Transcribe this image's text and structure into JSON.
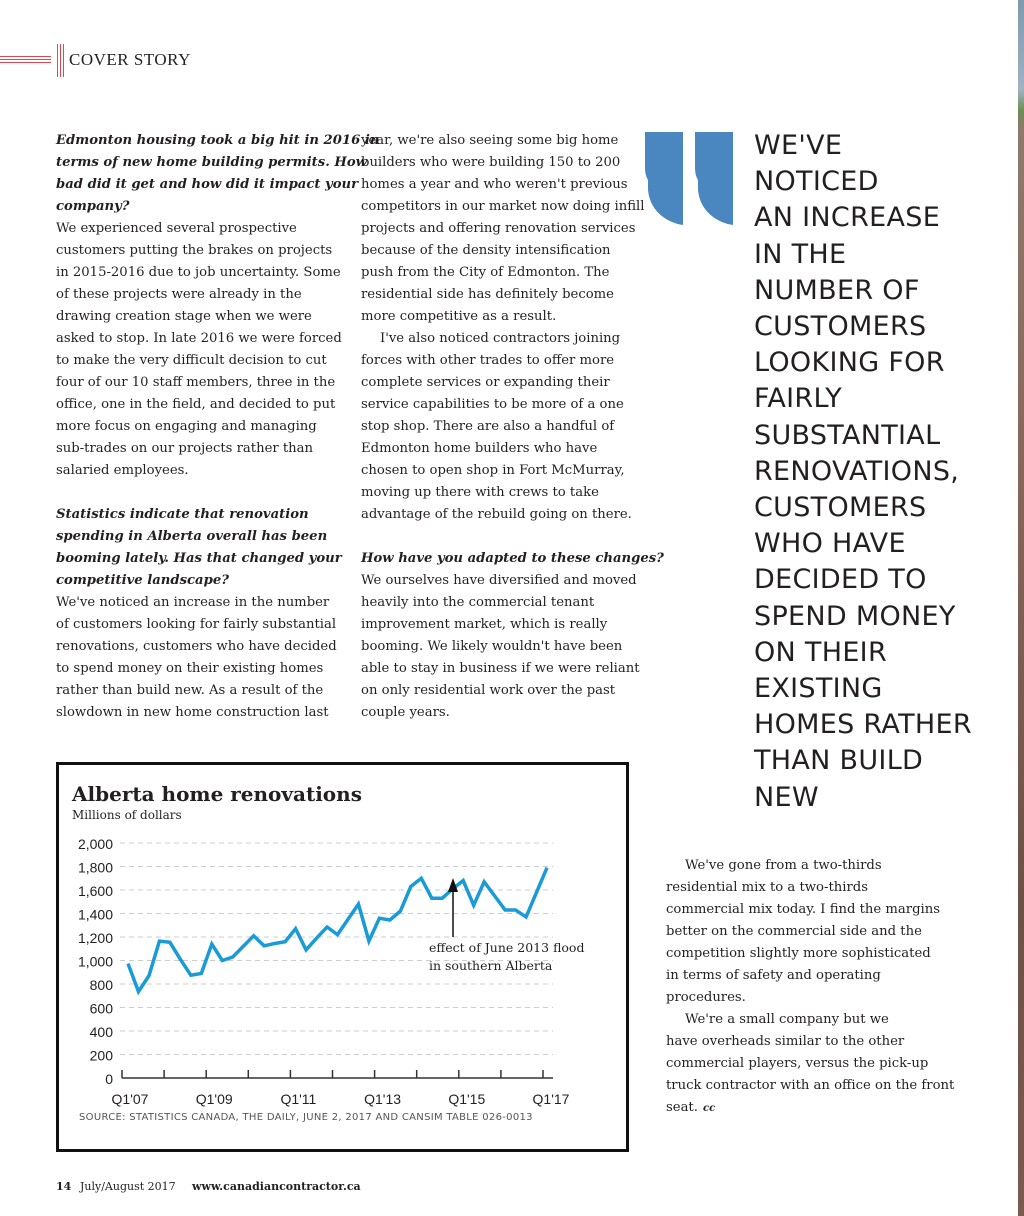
{
  "header": {
    "section": "COVER STORY"
  },
  "column1": [
    {
      "style": "q",
      "text": "Edmonton housing took a big hit in 2016 in"
    },
    {
      "style": "q",
      "text": "terms of new home building permits. How"
    },
    {
      "style": "q",
      "text": "bad did it get and how did it impact your"
    },
    {
      "style": "q",
      "text": "company?"
    },
    {
      "style": "",
      "text": "We experienced several prospective"
    },
    {
      "style": "",
      "text": "customers putting the brakes on projects"
    },
    {
      "style": "",
      "text": "in 2015-2016 due to job uncertainty. Some"
    },
    {
      "style": "",
      "text": "of these projects were already in the"
    },
    {
      "style": "",
      "text": "drawing creation stage when we were"
    },
    {
      "style": "",
      "text": "asked to stop. In late 2016 we were forced"
    },
    {
      "style": "",
      "text": "to make the very difficult decision to cut"
    },
    {
      "style": "",
      "text": "four of our 10 staff members, three in the"
    },
    {
      "style": "",
      "text": "office, one in the field, and decided to put"
    },
    {
      "style": "",
      "text": "more focus on engaging and managing"
    },
    {
      "style": "",
      "text": "sub-trades on our projects rather than"
    },
    {
      "style": "",
      "text": "salaried employees."
    },
    {
      "style": "gap",
      "text": ""
    },
    {
      "style": "q",
      "text": "Statistics indicate that renovation"
    },
    {
      "style": "q",
      "text": "spending in Alberta overall has been"
    },
    {
      "style": "q",
      "text": "booming lately. Has that changed your"
    },
    {
      "style": "q",
      "text": "competitive landscape?"
    },
    {
      "style": "",
      "text": "We've noticed an increase in the number"
    },
    {
      "style": "",
      "text": "of customers looking for fairly substantial"
    },
    {
      "style": "",
      "text": "renovations, customers who have decided"
    },
    {
      "style": "",
      "text": "to spend money on their existing homes"
    },
    {
      "style": "",
      "text": "rather than build new. As a result of the"
    },
    {
      "style": "",
      "text": "slowdown in new home construction last"
    }
  ],
  "column2": [
    {
      "style": "",
      "text": "year, we're also seeing some big home"
    },
    {
      "style": "",
      "text": "builders who were building 150 to 200"
    },
    {
      "style": "",
      "text": "homes a year and who weren't previous"
    },
    {
      "style": "",
      "text": "competitors in our market now doing infill"
    },
    {
      "style": "",
      "text": "projects and offering renovation services"
    },
    {
      "style": "",
      "text": "because of the density intensification"
    },
    {
      "style": "",
      "text": "push from the City of Edmonton. The"
    },
    {
      "style": "",
      "text": "residential side has definitely become"
    },
    {
      "style": "",
      "text": "more competitive as a result."
    },
    {
      "style": "ind",
      "text": "I've also noticed contractors joining"
    },
    {
      "style": "",
      "text": "forces with other trades to offer more"
    },
    {
      "style": "",
      "text": "complete services or expanding their"
    },
    {
      "style": "",
      "text": "service capabilities to be more of a one"
    },
    {
      "style": "",
      "text": "stop shop. There are also a handful of"
    },
    {
      "style": "",
      "text": "Edmonton home builders who have"
    },
    {
      "style": "",
      "text": "chosen to open shop in Fort McMurray,"
    },
    {
      "style": "",
      "text": "moving up there with crews to take"
    },
    {
      "style": "",
      "text": "advantage of the rebuild going on there."
    },
    {
      "style": "gap",
      "text": ""
    },
    {
      "style": "q",
      "text": "How have you adapted to these changes?"
    },
    {
      "style": "",
      "text": "We ourselves have diversified and moved"
    },
    {
      "style": "",
      "text": "heavily into the commercial tenant"
    },
    {
      "style": "",
      "text": "improvement market, which is really"
    },
    {
      "style": "",
      "text": "booming. We likely wouldn't have been"
    },
    {
      "style": "",
      "text": "able to stay in business if we were reliant"
    },
    {
      "style": "",
      "text": "on only residential work over the past"
    },
    {
      "style": "",
      "text": "couple years."
    }
  ],
  "column3": [
    {
      "style": "ind",
      "text": "We've gone from a two-thirds"
    },
    {
      "style": "",
      "text": "residential mix to a two-thirds"
    },
    {
      "style": "",
      "text": "commercial mix today. I find the margins"
    },
    {
      "style": "",
      "text": "better on the commercial side and the"
    },
    {
      "style": "",
      "text": "competition slightly more sophisticated"
    },
    {
      "style": "",
      "text": "in terms of safety and operating"
    },
    {
      "style": "",
      "text": "procedures."
    },
    {
      "style": "ind",
      "text": "We're a small company but we"
    },
    {
      "style": "",
      "text": "have overheads similar to the other"
    },
    {
      "style": "",
      "text": "commercial players, versus the pick-up"
    },
    {
      "style": "",
      "text": "truck contractor with an office on the front"
    },
    {
      "style": "",
      "text": "seat."
    }
  ],
  "end_mark": "cc",
  "pull_quote": {
    "icon": "quote-mark-icon",
    "color": "#4a86c0",
    "lines": [
      "WE'VE",
      "NOTICED",
      "AN INCREASE",
      "IN THE",
      "NUMBER OF",
      "CUSTOMERS",
      "LOOKING FOR",
      "FAIRLY",
      "SUBSTANTIAL",
      "RENOVATIONS,",
      "CUSTOMERS",
      "WHO HAVE",
      "DECIDED TO",
      "SPEND MONEY",
      "ON THEIR",
      "EXISTING",
      "HOMES RATHER",
      "THAN BUILD",
      "NEW"
    ]
  },
  "chart_data": {
    "type": "line",
    "title": "Alberta home renovations",
    "subtitle": "Millions of dollars",
    "ylim": [
      0,
      2000
    ],
    "yticks": [
      "0",
      "200",
      "400",
      "600",
      "800",
      "1,000",
      "1,200",
      "1,400",
      "1,600",
      "1,800",
      "2,000"
    ],
    "xtick_labels": [
      "Q1'07",
      "Q1'09",
      "Q1'11",
      "Q1'13",
      "Q1'15",
      "Q1'17"
    ],
    "x_range": [
      "Q1'07",
      "Q1'17"
    ],
    "frequency": "quarterly",
    "grid": "horizontal dashed",
    "line_color": "#1a9bd7",
    "values": [
      974,
      735,
      870,
      1165,
      1155,
      1010,
      875,
      890,
      1140,
      1000,
      1030,
      1120,
      1210,
      1125,
      1145,
      1160,
      1270,
      1090,
      1190,
      1285,
      1220,
      1350,
      1480,
      1165,
      1360,
      1345,
      1420,
      1630,
      1700,
      1530,
      1530,
      1610,
      1680,
      1470,
      1670,
      1550,
      1430,
      1430,
      1370,
      1580,
      1790
    ],
    "annotation": {
      "line1": "effect of June 2013 flood",
      "line2": "in southern Alberta",
      "x": "Q3'13"
    },
    "source": "SOURCE: STATISTICS CANADA, THE DAILY, JUNE 2, 2017 AND CANSIM TABLE 026-0013"
  },
  "footer": {
    "page": "14",
    "issue": "July/August 2017",
    "url": "www.canadiancontractor.ca"
  }
}
